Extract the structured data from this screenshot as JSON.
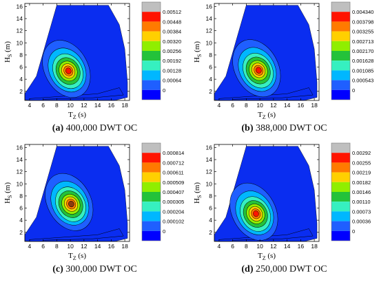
{
  "figure": {
    "panels": [
      {
        "id": "a",
        "label": "(a)",
        "caption": "400,000 DWT OC"
      },
      {
        "id": "b",
        "label": "(b)",
        "caption": "388,000 DWT OC"
      },
      {
        "id": "c",
        "label": "(c)",
        "caption": "300,000 DWT OC"
      },
      {
        "id": "d",
        "label": "(d)",
        "caption": "250,000 DWT OC"
      }
    ]
  },
  "chart_data": [
    {
      "type": "heatmap",
      "subtype": "filled-contour",
      "xlabel": "T_Z (s)",
      "ylabel": "H_S (m)",
      "xlim": [
        3.3,
        18.7
      ],
      "ylim": [
        0.5,
        16.5
      ],
      "xticks": [
        4,
        6,
        8,
        10,
        12,
        14,
        16,
        18
      ],
      "yticks": [
        2,
        4,
        6,
        8,
        10,
        12,
        14,
        16
      ],
      "peak": {
        "x": 9.6,
        "y": 5.3
      },
      "colorbar_levels": [
        "0",
        "0.00064",
        "0.00128",
        "0.00192",
        "0.00256",
        "0.00320",
        "0.00384",
        "0.00448",
        "0.00512"
      ],
      "max_color": "#ff3b00"
    },
    {
      "type": "heatmap",
      "subtype": "filled-contour",
      "xlabel": "T_Z (s)",
      "ylabel": "H_S (m)",
      "xlim": [
        3.3,
        18.7
      ],
      "ylim": [
        0.5,
        16.5
      ],
      "xticks": [
        4,
        6,
        8,
        10,
        12,
        14,
        16,
        18
      ],
      "yticks": [
        2,
        4,
        6,
        8,
        10,
        12,
        14,
        16
      ],
      "peak": {
        "x": 9.7,
        "y": 5.4
      },
      "colorbar_levels": [
        "0",
        "0.000543",
        "0.001085",
        "0.001628",
        "0.002170",
        "0.002713",
        "0.003255",
        "0.003798",
        "0.004340"
      ],
      "max_color": "#ff3b00"
    },
    {
      "type": "heatmap",
      "subtype": "filled-contour",
      "xlabel": "T_Z (s)",
      "ylabel": "H_S (m)",
      "xlim": [
        3.3,
        18.7
      ],
      "ylim": [
        0.5,
        16.5
      ],
      "xticks": [
        4,
        6,
        8,
        10,
        12,
        14,
        16,
        18
      ],
      "yticks": [
        2,
        4,
        6,
        8,
        10,
        12,
        14,
        16
      ],
      "peak": {
        "x": 10.0,
        "y": 6.6
      },
      "colorbar_levels": [
        "0",
        "0.000102",
        "0.000204",
        "0.000305",
        "0.000407",
        "0.000509",
        "0.000611",
        "0.000712",
        "0.000814"
      ],
      "max_color": "#8b3a10"
    },
    {
      "type": "heatmap",
      "subtype": "filled-contour",
      "xlabel": "T_Z (s)",
      "ylabel": "H_S (m)",
      "xlim": [
        3.3,
        18.7
      ],
      "ylim": [
        0.5,
        16.5
      ],
      "xticks": [
        4,
        6,
        8,
        10,
        12,
        14,
        16,
        18
      ],
      "yticks": [
        2,
        4,
        6,
        8,
        10,
        12,
        14,
        16
      ],
      "peak": {
        "x": 9.3,
        "y": 5.0
      },
      "colorbar_levels": [
        "0",
        "0.00036",
        "0.00073",
        "0.00110",
        "0.00146",
        "0.00182",
        "0.00219",
        "0.00255",
        "0.00292"
      ],
      "max_color": "#cc1a00"
    }
  ],
  "colors": {
    "bands": [
      "#0000ff",
      "#1f5fff",
      "#00b7ff",
      "#36f0c0",
      "#23c23a",
      "#90ee00",
      "#ffd000",
      "#ff7a00",
      "#ff1400"
    ],
    "colorbar_top": "#bfbfbf",
    "outer_region": "#0a2df0"
  }
}
